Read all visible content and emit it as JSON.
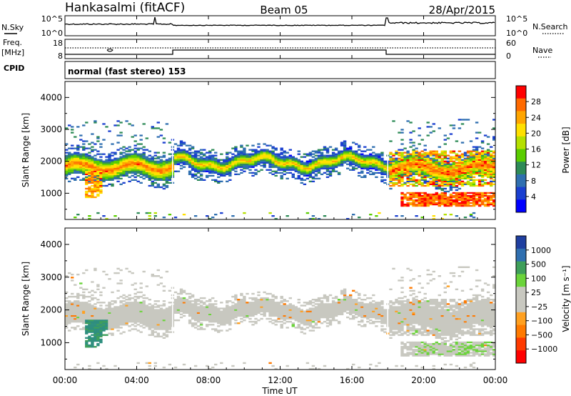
{
  "header": {
    "station": "Hankasalmi (fitACF)",
    "beam": "Beam 05",
    "date": "28/Apr/2015"
  },
  "noise_panel": {
    "left_label": "N.Sky",
    "right_label": "N.Search",
    "left_ticks": [
      "10^5",
      "10^0"
    ],
    "right_ticks": [
      "10^5",
      "10^0"
    ]
  },
  "freq_panel": {
    "left_label_1": "Freq.",
    "left_label_2": "[MHz]",
    "right_label": "Nave",
    "left_ticks": [
      "18",
      "8"
    ],
    "right_ticks": [
      "60",
      "0"
    ]
  },
  "cpid": {
    "label": "CPID",
    "text": "normal (fast stereo) 153"
  },
  "power_panel": {
    "ylabel": "Slant Range [km]",
    "colorbar_label": "Power [dB]",
    "colorbar_ticks": [
      "28",
      "24",
      "20",
      "16",
      "12",
      "8",
      "4"
    ],
    "colorbar_colors": [
      "#ff0000",
      "#ff6a00",
      "#ffa500",
      "#ffe000",
      "#b5e000",
      "#5acd00",
      "#2e8b57",
      "#2f6fb0",
      "#1a3fd0",
      "#0000ff"
    ]
  },
  "velocity_panel": {
    "ylabel": "Slant Range [km]",
    "colorbar_label": "Velocity [m s⁻¹]",
    "colorbar_ticks": [
      "1000",
      "500",
      "100",
      "25",
      "−25",
      "−100",
      "−500",
      "−1000"
    ],
    "colorbar_colors": [
      "#1f3fa0",
      "#2f6fb0",
      "#3f9f5a",
      "#6bd43a",
      "#c8c8c0",
      "#c8c8c0",
      "#ffa020",
      "#ff7a00",
      "#ff3a00",
      "#ff0000"
    ]
  },
  "x_axis": {
    "label": "Time UT",
    "ticks": [
      "00:00",
      "04:00",
      "08:00",
      "12:00",
      "16:00",
      "20:00",
      "00:00"
    ]
  },
  "chart_data": [
    {
      "type": "heatmap",
      "title": "Power",
      "ylabel": "Slant Range [km]",
      "xlabel": "Time UT",
      "x_range_hours": [
        0,
        24
      ],
      "ylim": [
        180,
        4500
      ],
      "yticks": [
        1000,
        2000,
        3000,
        4000
      ],
      "colorbar": {
        "label": "Power [dB]",
        "range": [
          0,
          30
        ],
        "ticks": [
          4,
          8,
          12,
          16,
          20,
          24,
          28
        ]
      },
      "echo_bands": [
        {
          "t0": 0.0,
          "t1": 6.0,
          "r_center": 1900,
          "r_width": 600,
          "peak_db": 26
        },
        {
          "t0": 6.0,
          "t1": 18.0,
          "r_center": 1950,
          "r_width": 500,
          "peak_db": 20
        },
        {
          "t0": 18.0,
          "t1": 24.0,
          "r_center": 1700,
          "r_width": 700,
          "peak_db": 26
        },
        {
          "t0": 18.5,
          "t1": 24.0,
          "r_center": 800,
          "r_width": 300,
          "peak_db": 28
        }
      ]
    },
    {
      "type": "heatmap",
      "title": "Velocity",
      "ylabel": "Slant Range [km]",
      "xlabel": "Time UT",
      "x_range_hours": [
        0,
        24
      ],
      "ylim": [
        180,
        4500
      ],
      "yticks": [
        1000,
        2000,
        3000,
        4000
      ],
      "colorbar": {
        "label": "Velocity [m s⁻¹]",
        "ticks": [
          1000,
          500,
          100,
          25,
          -25,
          -100,
          -500,
          -1000
        ]
      }
    }
  ]
}
